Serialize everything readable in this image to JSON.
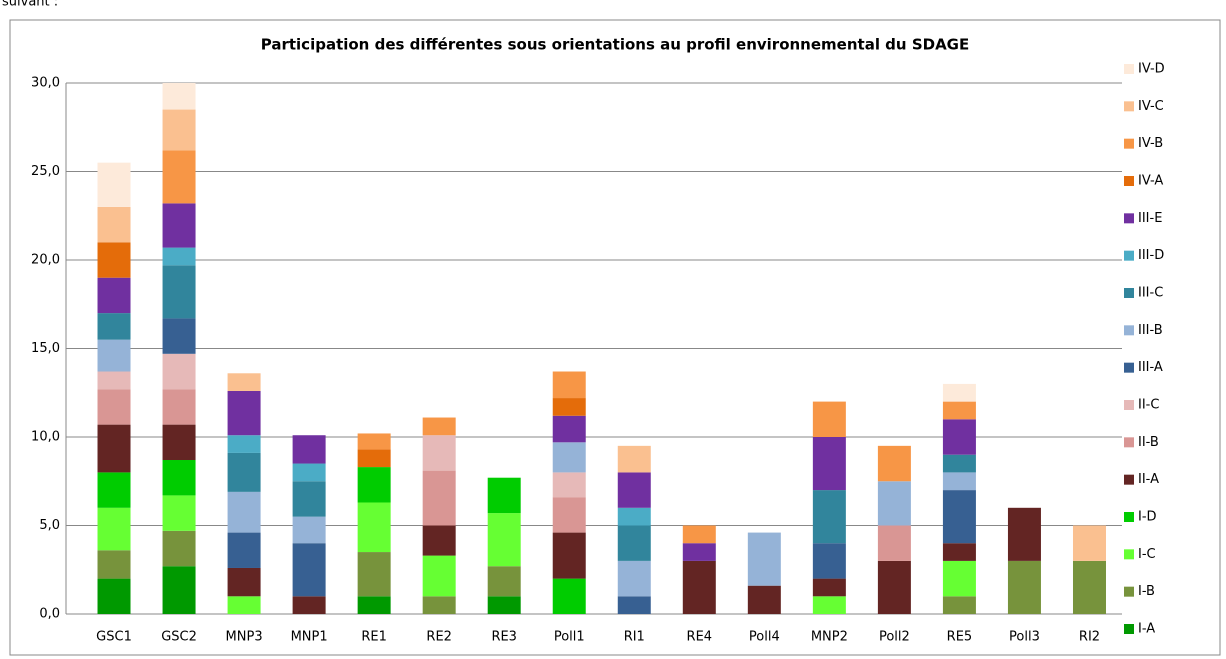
{
  "page_text": "suivant :",
  "chart_data": {
    "type": "stacked_bar",
    "title": "Participation des différentes sous orientations au profil environnemental du SDAGE",
    "categories": [
      "GSC1",
      "GSC2",
      "MNP3",
      "MNP1",
      "RE1",
      "RE2",
      "RE3",
      "Poll1",
      "RI1",
      "RE4",
      "Poll4",
      "MNP2",
      "Poll2",
      "RE5",
      "Poll3",
      "RI2"
    ],
    "ylim": [
      0,
      30
    ],
    "yticks": [
      {
        "value": 0,
        "label": "0,0"
      },
      {
        "value": 5,
        "label": "5,0"
      },
      {
        "value": 10,
        "label": "10,0"
      },
      {
        "value": 15,
        "label": "15,0"
      },
      {
        "value": 20,
        "label": "20,0"
      },
      {
        "value": 25,
        "label": "25,0"
      },
      {
        "value": 30,
        "label": "30,0"
      }
    ],
    "grid": true,
    "legend": "right",
    "series": [
      {
        "name": "I-A",
        "color": "#009900",
        "values": [
          2,
          2.7,
          0,
          0,
          1,
          0,
          1,
          0,
          0,
          0,
          0,
          0,
          0,
          0,
          0,
          0
        ]
      },
      {
        "name": "I-B",
        "color": "#77933C",
        "values": [
          1.6,
          2,
          0,
          0,
          2.5,
          1,
          1.7,
          0,
          0,
          0,
          0,
          0,
          0,
          1,
          3,
          3
        ]
      },
      {
        "name": "I-C",
        "color": "#66FF33",
        "values": [
          2.4,
          2,
          1,
          0,
          2.8,
          2.3,
          3,
          0,
          0,
          0,
          0,
          1,
          0,
          2,
          0,
          0
        ]
      },
      {
        "name": "I-D",
        "color": "#00CC00",
        "values": [
          2,
          2,
          0,
          0,
          2,
          0,
          2,
          2,
          0,
          0,
          0,
          0,
          0,
          0,
          0,
          0
        ]
      },
      {
        "name": "II-A",
        "color": "#632523",
        "values": [
          2.7,
          2,
          1.6,
          1,
          0,
          1.7,
          0,
          2.6,
          0,
          3,
          1.6,
          1,
          3,
          1,
          3,
          0
        ]
      },
      {
        "name": "II-B",
        "color": "#D99694",
        "values": [
          2,
          2,
          0,
          0,
          0,
          3.1,
          0,
          2,
          0,
          0,
          0,
          0,
          2,
          0,
          0,
          0
        ]
      },
      {
        "name": "II-C",
        "color": "#E6B9B8",
        "values": [
          1,
          2,
          0,
          0,
          0,
          2,
          0,
          1.4,
          0,
          0,
          0,
          0,
          0,
          0,
          0,
          0
        ]
      },
      {
        "name": "III-A",
        "color": "#376092",
        "values": [
          0,
          2,
          2,
          3,
          0,
          0,
          0,
          0,
          1,
          0,
          0,
          2,
          0,
          3,
          0,
          0
        ]
      },
      {
        "name": "III-B",
        "color": "#95B3D7",
        "values": [
          1.8,
          0,
          2.3,
          1.5,
          0,
          0,
          0,
          1.7,
          2,
          0,
          3,
          0,
          2.5,
          1,
          0,
          0
        ]
      },
      {
        "name": "III-C",
        "color": "#31859C",
        "values": [
          1.5,
          3,
          2.2,
          2,
          0,
          0,
          0,
          0,
          2,
          0,
          0,
          3,
          0,
          1,
          0,
          0
        ]
      },
      {
        "name": "III-D",
        "color": "#4BACC6",
        "values": [
          0,
          1,
          1,
          1,
          0,
          0,
          0,
          0,
          1,
          0,
          0,
          0,
          0,
          0,
          0,
          0
        ]
      },
      {
        "name": "III-E",
        "color": "#7030A0",
        "values": [
          2,
          2.5,
          2.5,
          1.6,
          0,
          0,
          0,
          1.5,
          2,
          1,
          0,
          3,
          0,
          2,
          0,
          0
        ]
      },
      {
        "name": "IV-A",
        "color": "#E46C0A",
        "values": [
          2,
          0,
          0,
          0,
          1,
          0,
          0,
          1,
          0,
          0,
          0,
          0,
          0,
          0,
          0,
          0
        ]
      },
      {
        "name": "IV-B",
        "color": "#F79646",
        "values": [
          0,
          3,
          0,
          0,
          0.9,
          1,
          0,
          1.5,
          0,
          1,
          0,
          2,
          2,
          1,
          0,
          0
        ]
      },
      {
        "name": "IV-C",
        "color": "#FAC090",
        "values": [
          2,
          2.3,
          1,
          0,
          0,
          0,
          0,
          0,
          1.5,
          0,
          0,
          0,
          0,
          0,
          0,
          2
        ]
      },
      {
        "name": "IV-D",
        "color": "#FDEADA",
        "values": [
          2.5,
          1.5,
          0,
          0,
          0,
          0,
          0,
          0,
          0,
          0,
          0,
          0,
          0,
          1,
          0,
          0
        ]
      }
    ]
  }
}
